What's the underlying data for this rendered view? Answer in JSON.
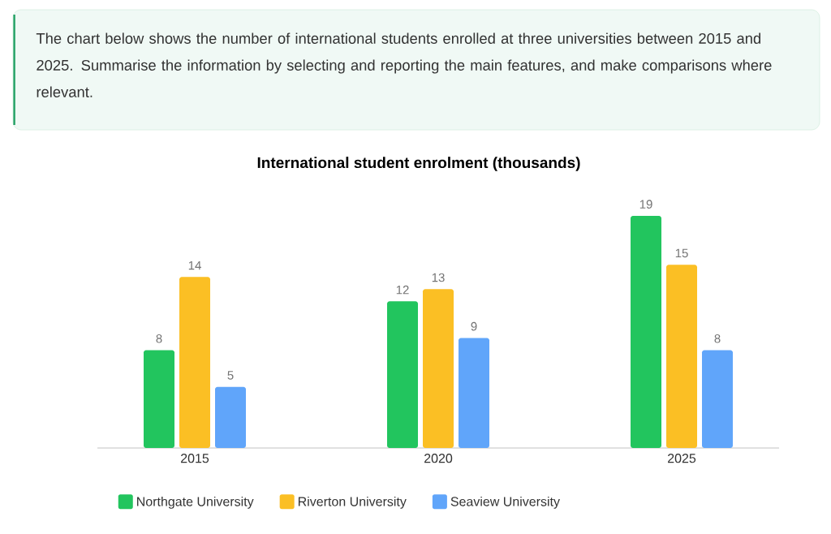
{
  "chart_data": {
    "type": "bar",
    "title": "International student enrolment (thousands)",
    "annotations": [
      "The chart below shows the number of international students enrolled at three universities between 2015 and 2025. Summarise the information by selecting and reporting the main features, and make comparisons where relevant."
    ],
    "categories": [
      "2015",
      "2020",
      "2025"
    ],
    "series": [
      {
        "name": "Northgate University",
        "color": "#22c55e",
        "values": [
          8,
          12,
          19
        ]
      },
      {
        "name": "Riverton University",
        "color": "#fbbf24",
        "values": [
          14,
          13,
          15
        ]
      },
      {
        "name": "Seaview University",
        "color": "#60a5fa",
        "values": [
          5,
          9,
          8
        ]
      }
    ],
    "data_labels": true,
    "legend": "bottom"
  }
}
